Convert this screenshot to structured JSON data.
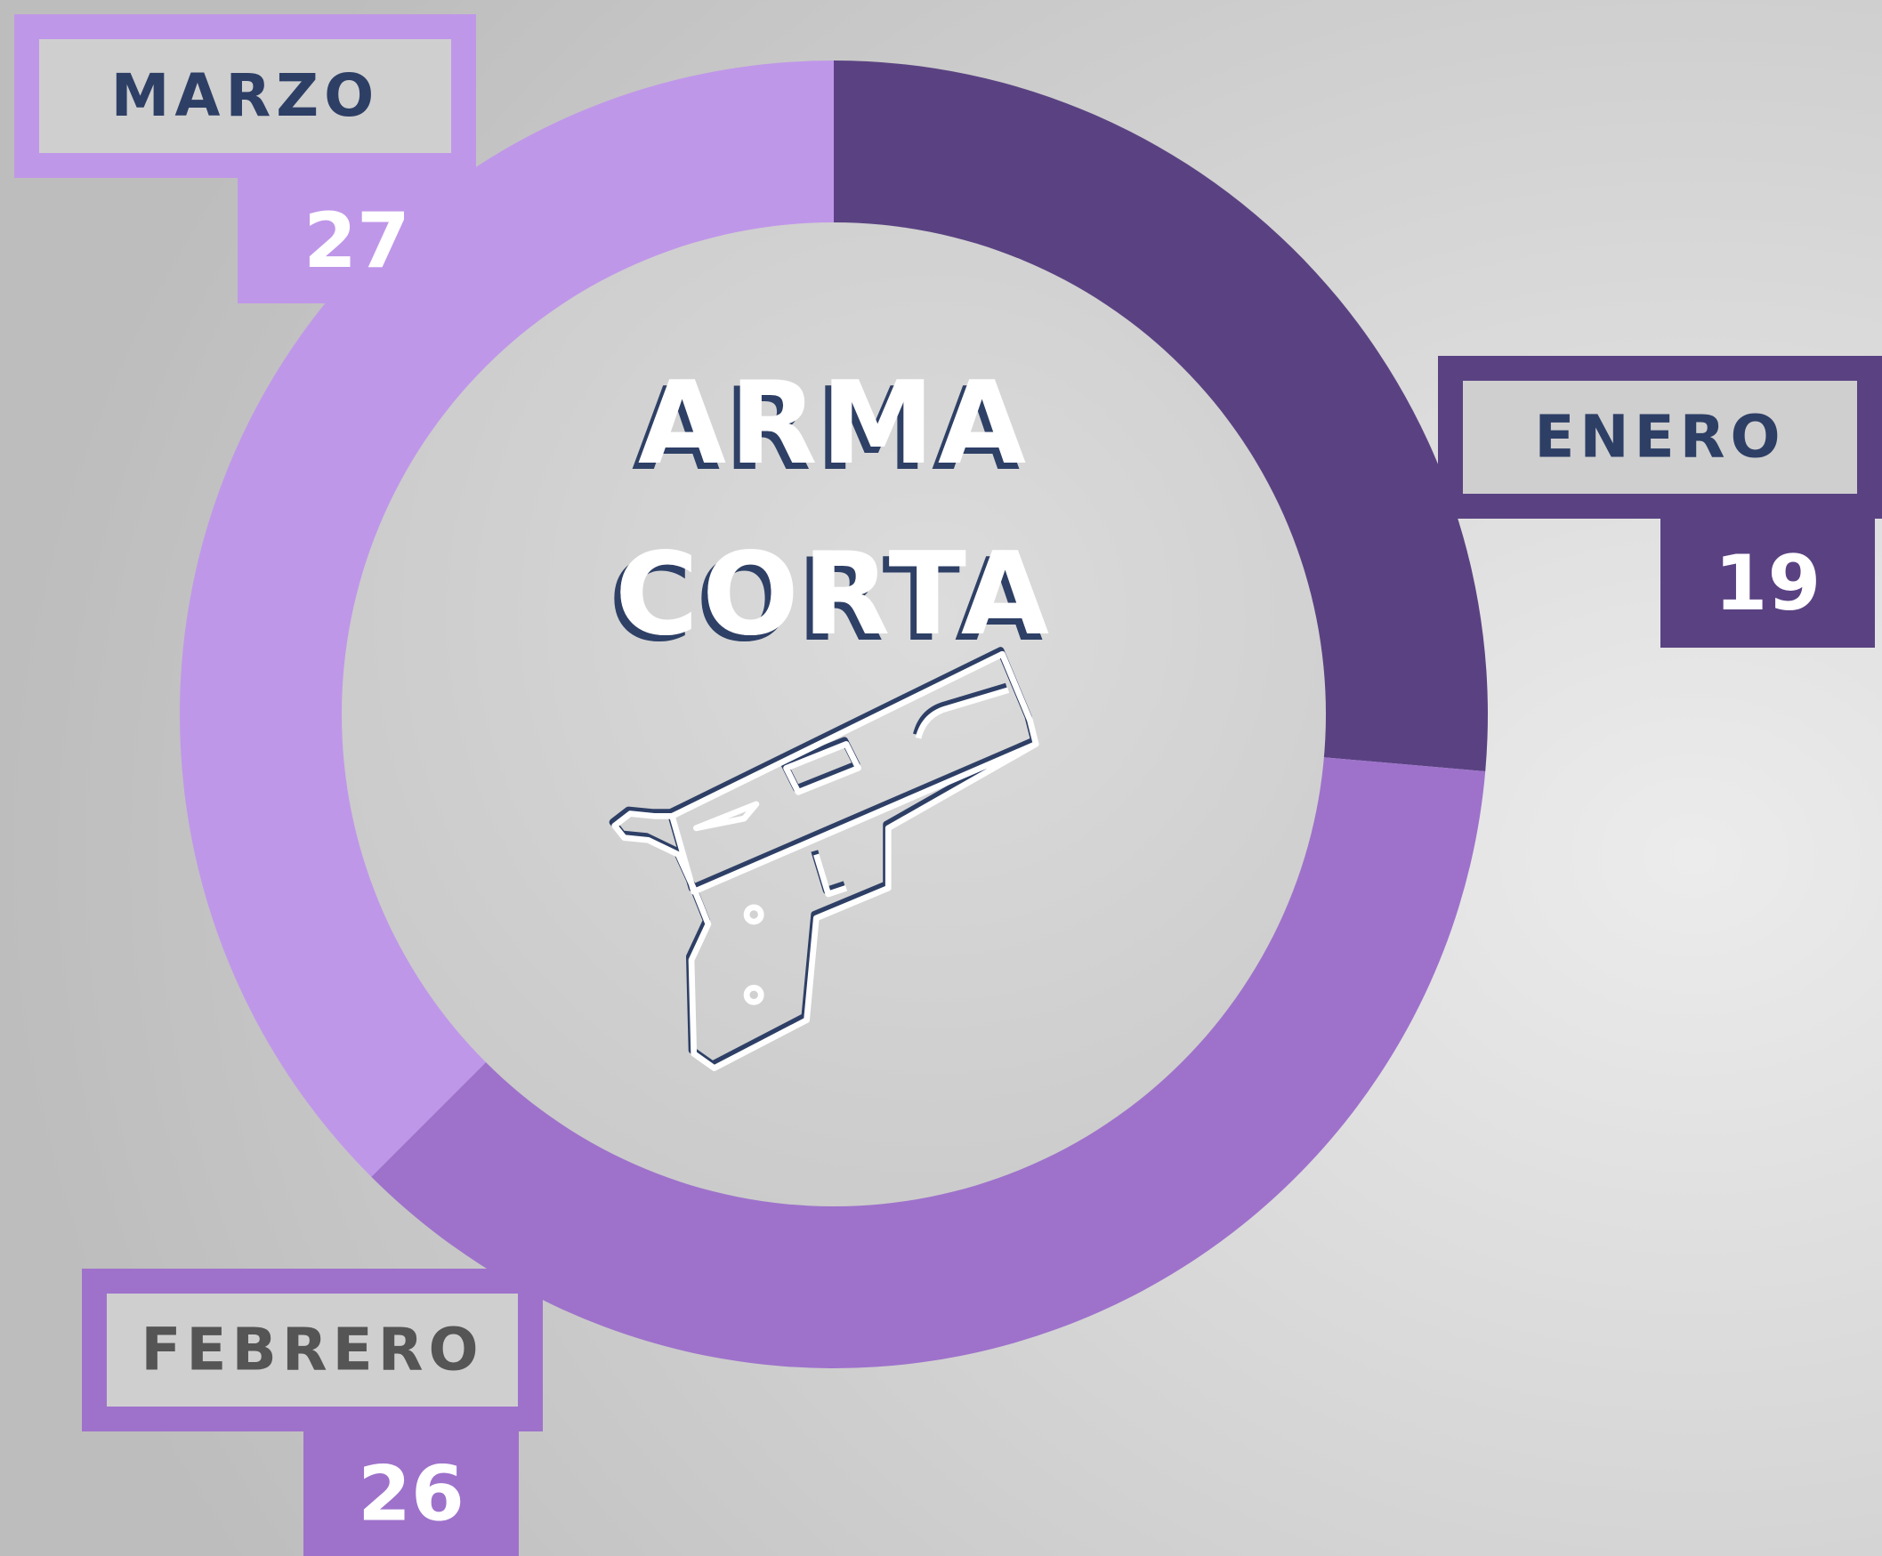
{
  "chart_data": {
    "type": "donut",
    "title": [
      "ARMA",
      "CORTA"
    ],
    "categories": [
      "ENERO",
      "FEBRERO",
      "MARZO"
    ],
    "values": [
      19,
      26,
      27
    ],
    "colors": [
      "#5a4282",
      "#9e72cb",
      "#bf97e9"
    ]
  }
}
